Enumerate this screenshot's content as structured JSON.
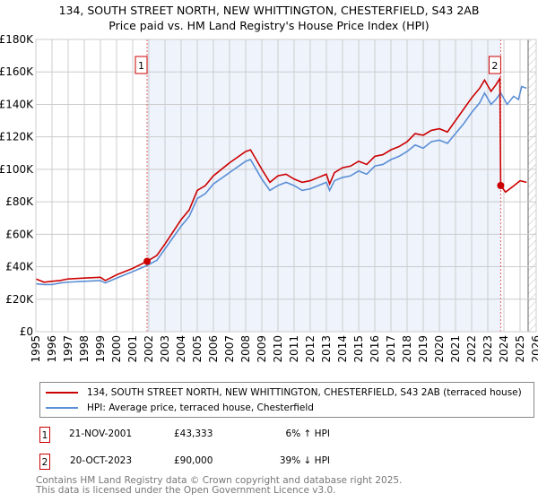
{
  "chart_data": {
    "type": "line",
    "title": "134, SOUTH STREET NORTH, NEW WHITTINGTON, CHESTERFIELD, S43 2AB",
    "subtitle": "Price paid vs. HM Land Registry's House Price Index (HPI)",
    "xlim": [
      1995,
      2026
    ],
    "ylim": [
      0,
      180000
    ],
    "yticks": [
      {
        "v": 0,
        "label": "£0"
      },
      {
        "v": 20000,
        "label": "£20K"
      },
      {
        "v": 40000,
        "label": "£40K"
      },
      {
        "v": 60000,
        "label": "£60K"
      },
      {
        "v": 80000,
        "label": "£80K"
      },
      {
        "v": 100000,
        "label": "£100K"
      },
      {
        "v": 120000,
        "label": "£120K"
      },
      {
        "v": 140000,
        "label": "£140K"
      },
      {
        "v": 160000,
        "label": "£160K"
      },
      {
        "v": 180000,
        "label": "£180K"
      }
    ],
    "xticks": [
      "1995",
      "1996",
      "1997",
      "1998",
      "1999",
      "2000",
      "2001",
      "2002",
      "2003",
      "2004",
      "2005",
      "2006",
      "2007",
      "2008",
      "2009",
      "2010",
      "2011",
      "2012",
      "2013",
      "2014",
      "2015",
      "2016",
      "2017",
      "2018",
      "2019",
      "2020",
      "2021",
      "2022",
      "2023",
      "2024",
      "2025",
      "2026"
    ],
    "series": [
      {
        "name": "134, SOUTH STREET NORTH, NEW WHITTINGTON, CHESTERFIELD, S43 2AB (terraced house)",
        "color": "#cc0000",
        "x": [
          1995,
          1995.5,
          1996,
          1996.5,
          1997,
          1998,
          1999,
          1999.3,
          2000,
          2001,
          2001.89,
          2002.5,
          2003,
          2004,
          2004.5,
          2005,
          2005.5,
          2006,
          2007,
          2008,
          2008.3,
          2009,
          2009.5,
          2010,
          2010.5,
          2011,
          2011.5,
          2012,
          2012.5,
          2013,
          2013.2,
          2013.5,
          2014,
          2014.5,
          2015,
          2015.5,
          2016,
          2016.5,
          2017,
          2017.5,
          2018,
          2018.5,
          2019,
          2019.5,
          2020,
          2020.5,
          2021,
          2021.5,
          2022,
          2022.5,
          2022.8,
          2023.2,
          2023.5,
          2023.75,
          2023.8,
          2024.1,
          2024.5,
          2025,
          2025.4
        ],
        "y": [
          32500,
          30500,
          31000,
          31500,
          32500,
          33000,
          33500,
          31500,
          35000,
          39000,
          43333,
          47000,
          54000,
          69000,
          75000,
          87000,
          90000,
          96000,
          104000,
          111000,
          112000,
          100000,
          92000,
          96000,
          97000,
          94000,
          92000,
          93000,
          95000,
          97000,
          91000,
          98000,
          101000,
          102000,
          105000,
          103000,
          108000,
          109000,
          112000,
          114000,
          117000,
          122000,
          121000,
          124000,
          125000,
          123000,
          130000,
          137000,
          144000,
          150000,
          155000,
          148000,
          152000,
          156000,
          90000,
          86000,
          89000,
          93000,
          92000
        ],
        "markers": [
          {
            "x": 2001.89,
            "y": 43333,
            "label": "1"
          },
          {
            "x": 2023.8,
            "y": 90000,
            "label": "2"
          }
        ]
      },
      {
        "name": "HPI: Average price, terraced house, Chesterfield",
        "color": "#5b8fd6",
        "x": [
          1995,
          1995.5,
          1996,
          1996.5,
          1997,
          1998,
          1999,
          1999.3,
          2000,
          2001,
          2001.89,
          2002.5,
          2003,
          2004,
          2004.5,
          2005,
          2005.5,
          2006,
          2007,
          2008,
          2008.3,
          2009,
          2009.5,
          2010,
          2010.5,
          2011,
          2011.5,
          2012,
          2012.5,
          2013,
          2013.2,
          2013.5,
          2014,
          2014.5,
          2015,
          2015.5,
          2016,
          2016.5,
          2017,
          2017.5,
          2018,
          2018.5,
          2019,
          2019.5,
          2020,
          2020.5,
          2021,
          2021.5,
          2022,
          2022.5,
          2022.8,
          2023.2,
          2023.5,
          2023.8,
          2024.2,
          2024.6,
          2024.9,
          2025.1,
          2025.4
        ],
        "y": [
          29500,
          29000,
          29000,
          30000,
          30500,
          31000,
          31500,
          30000,
          33000,
          37000,
          40800,
          44000,
          51000,
          65000,
          71000,
          82000,
          85000,
          91000,
          98000,
          105000,
          106000,
          94000,
          87000,
          90000,
          92000,
          90000,
          87000,
          88000,
          90000,
          92000,
          87000,
          93000,
          95000,
          96000,
          99000,
          97000,
          102000,
          103000,
          106000,
          108000,
          111000,
          115000,
          113000,
          117000,
          118000,
          116000,
          122000,
          128000,
          135000,
          141000,
          147000,
          140000,
          143000,
          147000,
          140000,
          145000,
          143000,
          151000,
          150000
        ]
      }
    ],
    "shaded_range": [
      2001.89,
      2023.8
    ],
    "hatched_from": 2025.5,
    "grid": true,
    "legend_position": "below"
  },
  "table": [
    {
      "n": "1",
      "date": "21-NOV-2001",
      "price": "£43,333",
      "hpi": "6% ↑ HPI"
    },
    {
      "n": "2",
      "date": "20-OCT-2023",
      "price": "£90,000",
      "hpi": "39% ↓ HPI"
    }
  ],
  "footer": [
    "Contains HM Land Registry data © Crown copyright and database right 2025.",
    "This data is licensed under the Open Government Licence v3.0."
  ]
}
